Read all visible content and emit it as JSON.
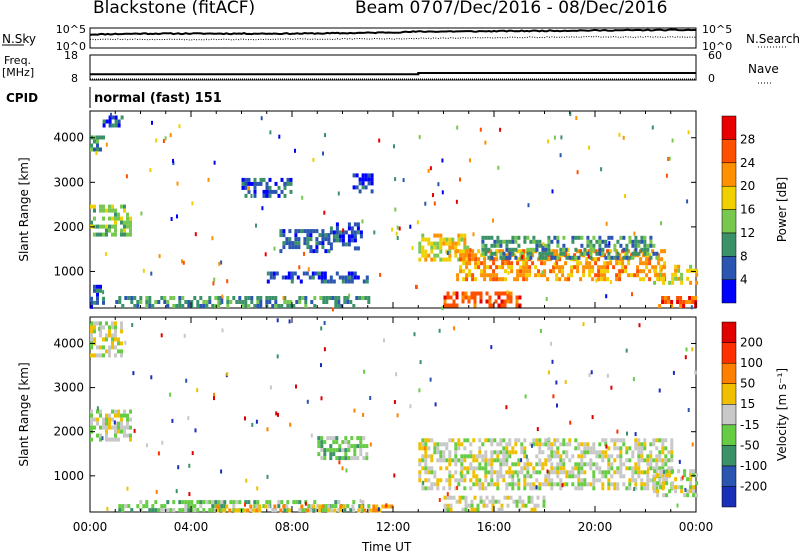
{
  "header": {
    "station": "Blackstone (fitACF)",
    "beam": "Beam 07",
    "date_range": "07/Dec/2016 - 08/Dec/2016"
  },
  "side_labels": {
    "nsky": "N.Sky",
    "nsearch": "N.Search",
    "freq": "Freq.",
    "freq_unit": "[MHz]",
    "nave": "Nave",
    "cpid": "CPID"
  },
  "cpid_text": "normal (fast) 151",
  "x_axis": {
    "label": "Time UT",
    "ticks": [
      "00:00",
      "04:00",
      "08:00",
      "12:00",
      "16:00",
      "20:00",
      "00:00"
    ]
  },
  "chart_data": [
    {
      "type": "line",
      "name": "noise",
      "y_ticks_left": [
        "10^5",
        "10^0"
      ],
      "y_ticks_right": [
        "10^5",
        "10^0"
      ],
      "series": [
        {
          "name": "N.Sky",
          "x": [
            0,
            2,
            4,
            6,
            8,
            10,
            12,
            13,
            16,
            20,
            23,
            24
          ],
          "y": [
            3.4,
            3.6,
            3.6,
            3.6,
            3.6,
            3.7,
            3.9,
            4.1,
            4.2,
            4.4,
            4.5,
            4.5
          ]
        },
        {
          "name": "N.Search",
          "x": [
            0,
            4,
            8,
            12,
            16,
            20,
            24
          ],
          "y": [
            2.2,
            2.1,
            2.2,
            2.3,
            2.6,
            2.8,
            2.7
          ]
        }
      ],
      "xlim": [
        0,
        24
      ]
    },
    {
      "type": "line",
      "name": "freq-nave",
      "y_ticks_left": [
        "18",
        "8"
      ],
      "y_ticks_right": [
        "60",
        "0"
      ],
      "ylim_left": [
        8,
        18
      ],
      "ylim_right": [
        0,
        60
      ],
      "series": [
        {
          "name": "Freq.",
          "x": [
            0,
            13,
            13,
            24
          ],
          "y": [
            10.3,
            10.3,
            10.8,
            10.8
          ]
        },
        {
          "name": "Nave",
          "x": [
            0,
            24
          ],
          "y": [
            0,
            0
          ]
        }
      ],
      "xlim": [
        0,
        24
      ]
    },
    {
      "type": "heatmap",
      "name": "power",
      "ylabel": "Slant Range [km]",
      "y_ticks": [
        "1000",
        "2000",
        "3000",
        "4000"
      ],
      "ylim": [
        180,
        4600
      ],
      "xlim": [
        0,
        24
      ],
      "colorbar": {
        "label": "Power [dB]",
        "ticks": [
          "4",
          "8",
          "12",
          "16",
          "20",
          "24",
          "28"
        ],
        "colors": [
          "#0000ff",
          "#2a55b0",
          "#3c9268",
          "#78c850",
          "#f0d000",
          "#ff9000",
          "#ff5000",
          "#e80000"
        ]
      },
      "regions": [
        {
          "t": [
            0.0,
            0.55
          ],
          "r": [
            3750,
            4050
          ],
          "level": 2
        },
        {
          "t": [
            0.5,
            1.3
          ],
          "r": [
            4300,
            4500
          ],
          "level": 1
        },
        {
          "t": [
            0.0,
            1.6
          ],
          "r": [
            1800,
            2500
          ],
          "level": 3
        },
        {
          "t": [
            0.0,
            0.5
          ],
          "r": [
            200,
            700
          ],
          "level": 1
        },
        {
          "t": [
            1.0,
            11.0
          ],
          "r": [
            200,
            450
          ],
          "level": 2
        },
        {
          "t": [
            7.0,
            11.0
          ],
          "r": [
            750,
            1000
          ],
          "level": 1
        },
        {
          "t": [
            7.5,
            9.5
          ],
          "r": [
            1500,
            1950
          ],
          "level": 1
        },
        {
          "t": [
            9.5,
            10.8
          ],
          "r": [
            1500,
            2100
          ],
          "level": 1
        },
        {
          "t": [
            6.0,
            8.0
          ],
          "r": [
            2700,
            3100
          ],
          "level": 1
        },
        {
          "t": [
            10.4,
            11.2
          ],
          "r": [
            2800,
            3200
          ],
          "level": 1
        },
        {
          "t": [
            13.0,
            15.0
          ],
          "r": [
            1300,
            1850
          ],
          "level": 4
        },
        {
          "t": [
            14.5,
            22.8
          ],
          "r": [
            850,
            1500
          ],
          "level": 5
        },
        {
          "t": [
            15.5,
            22.5
          ],
          "r": [
            1300,
            1800
          ],
          "level": 2
        },
        {
          "t": [
            14.0,
            17.0
          ],
          "r": [
            200,
            550
          ],
          "level": 6
        },
        {
          "t": [
            22.5,
            24.0
          ],
          "r": [
            200,
            450
          ],
          "level": 6
        },
        {
          "t": [
            22.3,
            24.0
          ],
          "r": [
            750,
            1150
          ],
          "level": 4
        }
      ]
    },
    {
      "type": "heatmap",
      "name": "velocity",
      "ylabel": "Slant Range [km]",
      "y_ticks": [
        "1000",
        "2000",
        "3000",
        "4000"
      ],
      "ylim": [
        180,
        4600
      ],
      "xlim": [
        0,
        24
      ],
      "colorbar": {
        "label": "Velocity [m s⁻¹]",
        "ticks": [
          "200",
          "100",
          "50",
          "15",
          "-15",
          "-50",
          "-100",
          "-200"
        ],
        "colors": [
          "#1a2fb8",
          "#2a55b0",
          "#3c9268",
          "#66cc44",
          "#c8c8c8",
          "#f0c000",
          "#ff8000",
          "#ff3000",
          "#e00000"
        ]
      },
      "regions": [
        {
          "t": [
            0.0,
            1.6
          ],
          "r": [
            1800,
            2500
          ],
          "level": 4
        },
        {
          "t": [
            0.0,
            1.3
          ],
          "r": [
            3750,
            4500
          ],
          "level": 4
        },
        {
          "t": [
            1.0,
            11.0
          ],
          "r": [
            200,
            450
          ],
          "level": 3
        },
        {
          "t": [
            5.0,
            12.0
          ],
          "r": [
            200,
            350
          ],
          "level": 5
        },
        {
          "t": [
            13.0,
            23.0
          ],
          "r": [
            700,
            1850
          ],
          "level": 4
        },
        {
          "t": [
            14.0,
            18.0
          ],
          "r": [
            200,
            550
          ],
          "level": 4
        },
        {
          "t": [
            22.3,
            24.0
          ],
          "r": [
            600,
            1150
          ],
          "level": 4
        },
        {
          "t": [
            9.0,
            11.0
          ],
          "r": [
            1400,
            1900
          ],
          "level": 3
        }
      ]
    }
  ]
}
